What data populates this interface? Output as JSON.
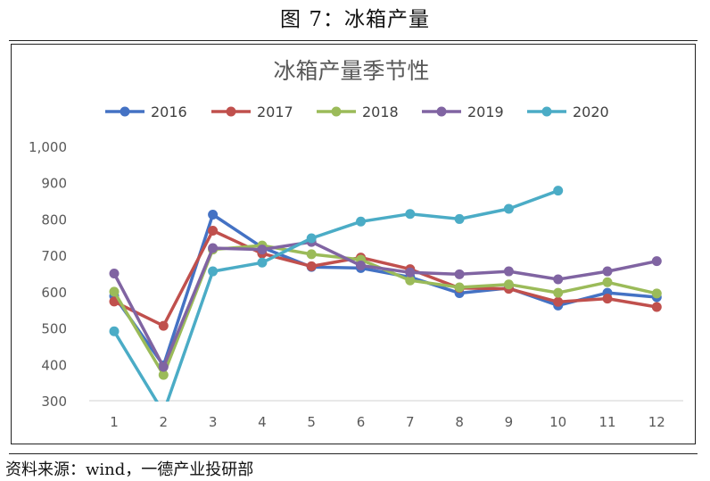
{
  "figure_title": "图 7：冰箱产量",
  "source_note": "资料来源：wind，一德产业投研部",
  "chart_data": {
    "type": "line",
    "title": "冰箱产量季节性",
    "categories": [
      "1",
      "2",
      "3",
      "4",
      "5",
      "6",
      "7",
      "8",
      "9",
      "10",
      "11",
      "12"
    ],
    "ylim": [
      300,
      1000
    ],
    "yticks": [
      "300",
      "400",
      "500",
      "600",
      "700",
      "800",
      "900",
      "1,000"
    ],
    "grid": false,
    "legend_position": "top",
    "series": [
      {
        "name": "2016",
        "color": "#4472C4",
        "values": [
          588,
          397,
          812,
          722,
          668,
          665,
          640,
          596,
          610,
          562,
          597,
          585
        ]
      },
      {
        "name": "2017",
        "color": "#C0504D",
        "values": [
          573,
          506,
          768,
          705,
          670,
          694,
          662,
          610,
          608,
          572,
          581,
          558
        ]
      },
      {
        "name": "2018",
        "color": "#9BBB59",
        "values": [
          600,
          371,
          716,
          727,
          703,
          688,
          631,
          612,
          620,
          597,
          626,
          595
        ]
      },
      {
        "name": "2019",
        "color": "#8064A2",
        "values": [
          650,
          393,
          720,
          716,
          737,
          672,
          653,
          648,
          656,
          634,
          656,
          684
        ]
      },
      {
        "name": "2020",
        "color": "#4BACC6",
        "values": [
          491,
          267,
          656,
          680,
          747,
          793,
          814,
          800,
          828,
          878,
          null,
          null
        ]
      }
    ]
  }
}
